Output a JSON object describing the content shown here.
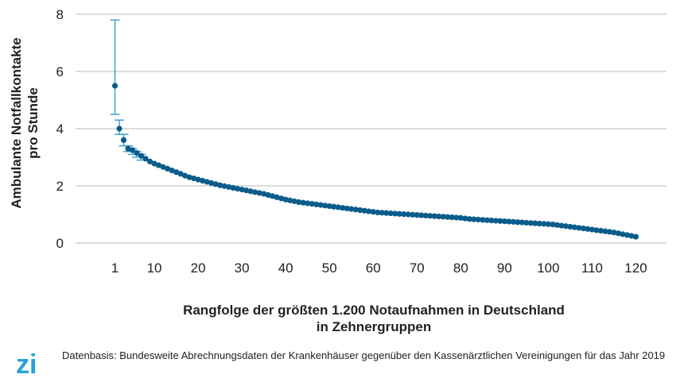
{
  "colors": {
    "point": "#0a5c8a",
    "errorbar": "#3ba3d0",
    "grid": "#c8c8c8",
    "logo": "#2aa0d8"
  },
  "chart_data": {
    "type": "scatter",
    "title": "",
    "xlabel_lines": [
      "Rangfolge der größten 1.200 Notaufnahmen in Deutschland",
      "in Zehnergruppen"
    ],
    "ylabel_lines": [
      "Ambulante Notfallkontakte",
      "pro Stunde"
    ],
    "xlim": [
      -8,
      127
    ],
    "ylim": [
      0,
      8
    ],
    "grid": "horizontal",
    "legend": "none",
    "x_ticks": [
      1,
      10,
      20,
      30,
      40,
      50,
      60,
      70,
      80,
      90,
      100,
      110,
      120
    ],
    "y_ticks": [
      0,
      2,
      4,
      6,
      8
    ],
    "series": [
      {
        "error_bars": [
          {
            "x": 1,
            "low": 4.5,
            "high": 7.8
          },
          {
            "x": 2,
            "low": 3.8,
            "high": 4.3
          },
          {
            "x": 3,
            "low": 3.4,
            "high": 3.8
          },
          {
            "x": 4,
            "low": 3.2,
            "high": 3.4
          },
          {
            "x": 5,
            "low": 3.1,
            "high": 3.3
          },
          {
            "x": 6,
            "low": 3.0,
            "high": 3.2
          },
          {
            "x": 7,
            "low": 2.9,
            "high": 3.1
          }
        ],
        "points": [
          [
            1,
            5.5
          ],
          [
            2,
            4.0
          ],
          [
            3,
            3.6
          ],
          [
            4,
            3.3
          ],
          [
            5,
            3.25
          ],
          [
            6,
            3.15
          ],
          [
            7,
            3.05
          ],
          [
            8,
            2.95
          ],
          [
            9,
            2.85
          ],
          [
            10,
            2.78
          ],
          [
            11,
            2.72
          ],
          [
            12,
            2.66
          ],
          [
            13,
            2.6
          ],
          [
            14,
            2.54
          ],
          [
            15,
            2.48
          ],
          [
            16,
            2.42
          ],
          [
            17,
            2.36
          ],
          [
            18,
            2.3
          ],
          [
            19,
            2.26
          ],
          [
            20,
            2.22
          ],
          [
            21,
            2.18
          ],
          [
            22,
            2.14
          ],
          [
            23,
            2.1
          ],
          [
            24,
            2.06
          ],
          [
            25,
            2.02
          ],
          [
            26,
            1.99
          ],
          [
            27,
            1.96
          ],
          [
            28,
            1.93
          ],
          [
            29,
            1.9
          ],
          [
            30,
            1.87
          ],
          [
            31,
            1.84
          ],
          [
            32,
            1.81
          ],
          [
            33,
            1.78
          ],
          [
            34,
            1.75
          ],
          [
            35,
            1.72
          ],
          [
            36,
            1.68
          ],
          [
            37,
            1.64
          ],
          [
            38,
            1.6
          ],
          [
            39,
            1.56
          ],
          [
            40,
            1.52
          ],
          [
            41,
            1.49
          ],
          [
            42,
            1.46
          ],
          [
            43,
            1.43
          ],
          [
            44,
            1.41
          ],
          [
            45,
            1.39
          ],
          [
            46,
            1.37
          ],
          [
            47,
            1.35
          ],
          [
            48,
            1.33
          ],
          [
            49,
            1.31
          ],
          [
            50,
            1.29
          ],
          [
            51,
            1.27
          ],
          [
            52,
            1.25
          ],
          [
            53,
            1.23
          ],
          [
            54,
            1.21
          ],
          [
            55,
            1.19
          ],
          [
            56,
            1.17
          ],
          [
            57,
            1.15
          ],
          [
            58,
            1.13
          ],
          [
            59,
            1.11
          ],
          [
            60,
            1.09
          ],
          [
            61,
            1.07
          ],
          [
            62,
            1.06
          ],
          [
            63,
            1.05
          ],
          [
            64,
            1.04
          ],
          [
            65,
            1.03
          ],
          [
            66,
            1.02
          ],
          [
            67,
            1.01
          ],
          [
            68,
            1.0
          ],
          [
            69,
            0.99
          ],
          [
            70,
            0.98
          ],
          [
            71,
            0.97
          ],
          [
            72,
            0.96
          ],
          [
            73,
            0.95
          ],
          [
            74,
            0.94
          ],
          [
            75,
            0.93
          ],
          [
            76,
            0.92
          ],
          [
            77,
            0.91
          ],
          [
            78,
            0.9
          ],
          [
            79,
            0.89
          ],
          [
            80,
            0.88
          ],
          [
            81,
            0.86
          ],
          [
            82,
            0.84
          ],
          [
            83,
            0.83
          ],
          [
            84,
            0.82
          ],
          [
            85,
            0.81
          ],
          [
            86,
            0.8
          ],
          [
            87,
            0.79
          ],
          [
            88,
            0.78
          ],
          [
            89,
            0.77
          ],
          [
            90,
            0.76
          ],
          [
            91,
            0.75
          ],
          [
            92,
            0.74
          ],
          [
            93,
            0.73
          ],
          [
            94,
            0.72
          ],
          [
            95,
            0.71
          ],
          [
            96,
            0.7
          ],
          [
            97,
            0.69
          ],
          [
            98,
            0.68
          ],
          [
            99,
            0.67
          ],
          [
            100,
            0.66
          ],
          [
            101,
            0.65
          ],
          [
            102,
            0.63
          ],
          [
            103,
            0.61
          ],
          [
            104,
            0.59
          ],
          [
            105,
            0.57
          ],
          [
            106,
            0.55
          ],
          [
            107,
            0.53
          ],
          [
            108,
            0.51
          ],
          [
            109,
            0.49
          ],
          [
            110,
            0.47
          ],
          [
            111,
            0.45
          ],
          [
            112,
            0.43
          ],
          [
            113,
            0.41
          ],
          [
            114,
            0.39
          ],
          [
            115,
            0.37
          ],
          [
            116,
            0.34
          ],
          [
            117,
            0.31
          ],
          [
            118,
            0.28
          ],
          [
            119,
            0.25
          ],
          [
            120,
            0.22
          ]
        ]
      }
    ]
  },
  "footer": {
    "logo_text": "zi",
    "source_text": "Datenbasis: Bundesweite Abrechnungsdaten der Krankenhäuser gegenüber den Kassenärztlichen Vereinigungen für das Jahr 2019"
  }
}
